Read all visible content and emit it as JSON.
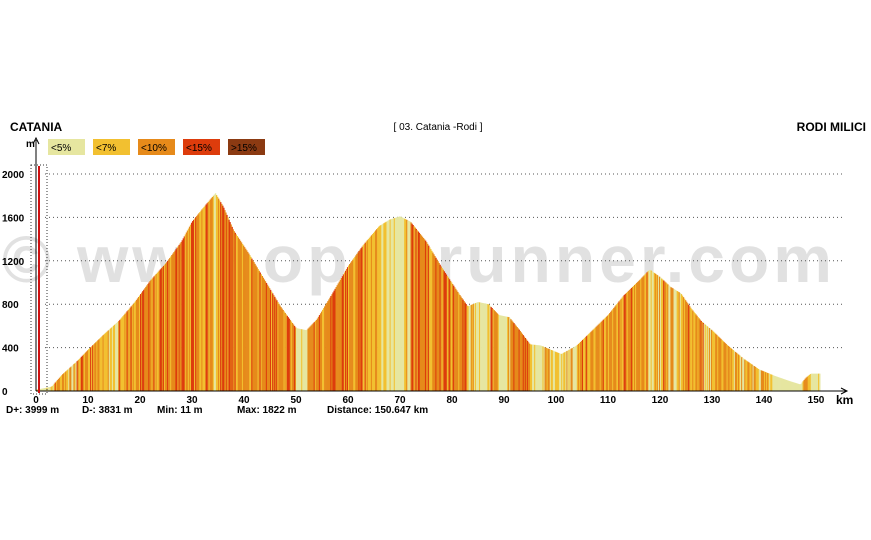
{
  "chart_data": {
    "type": "area",
    "title": "[ 03. Catania -Rodi ]",
    "start_label": "CATANIA",
    "end_label": "RODI MILICI",
    "ylabel": "m",
    "xlabel": "km",
    "xlim": [
      0,
      150.647
    ],
    "ylim": [
      0,
      2000
    ],
    "y_ticks": [
      "0",
      "400",
      "800",
      "1200",
      "1600",
      "2000"
    ],
    "x_ticks": [
      "0",
      "10",
      "20",
      "30",
      "40",
      "50",
      "60",
      "70",
      "80",
      "90",
      "100",
      "110",
      "120",
      "130",
      "140",
      "150"
    ],
    "legend": [
      {
        "label": "<5%",
        "color": "#e6e6a0"
      },
      {
        "label": "<7%",
        "color": "#f2c030"
      },
      {
        "label": "<10%",
        "color": "#e68a1a"
      },
      {
        "label": "<15%",
        "color": "#dd3c0c"
      },
      {
        "label": ">15%",
        "color": "#8b3a12"
      }
    ],
    "profile": {
      "x": [
        0,
        3,
        5,
        8,
        10,
        13,
        16,
        19,
        22,
        25,
        28,
        30,
        32,
        34.5,
        36,
        38,
        41,
        44,
        47,
        50,
        52,
        54,
        57,
        60,
        63,
        66,
        68,
        70,
        72,
        75,
        78,
        81,
        83,
        85,
        87,
        89,
        91,
        93,
        95,
        97,
        99,
        101,
        104,
        107,
        110,
        113,
        116,
        118,
        120,
        122,
        124,
        126,
        128,
        130,
        133,
        136,
        139,
        142,
        145,
        147,
        148,
        149,
        150.6
      ],
      "y": [
        11,
        40,
        150,
        280,
        380,
        520,
        650,
        820,
        1020,
        1180,
        1380,
        1560,
        1680,
        1822,
        1700,
        1480,
        1260,
        1020,
        780,
        580,
        560,
        660,
        900,
        1150,
        1350,
        1520,
        1580,
        1610,
        1560,
        1380,
        1140,
        920,
        780,
        820,
        800,
        700,
        680,
        560,
        430,
        420,
        380,
        340,
        420,
        560,
        700,
        880,
        1020,
        1120,
        1050,
        960,
        900,
        760,
        640,
        560,
        420,
        300,
        200,
        140,
        90,
        60,
        120,
        160,
        160
      ]
    },
    "stats": {
      "d_plus": "D+: 3999 m",
      "d_minus": "D-: 3831 m",
      "min": "Min: 11 m",
      "max": "Max: 1822 m",
      "distance": "Distance: 150.647 km"
    },
    "grid": true
  },
  "watermark": "© www.openrunner.com"
}
